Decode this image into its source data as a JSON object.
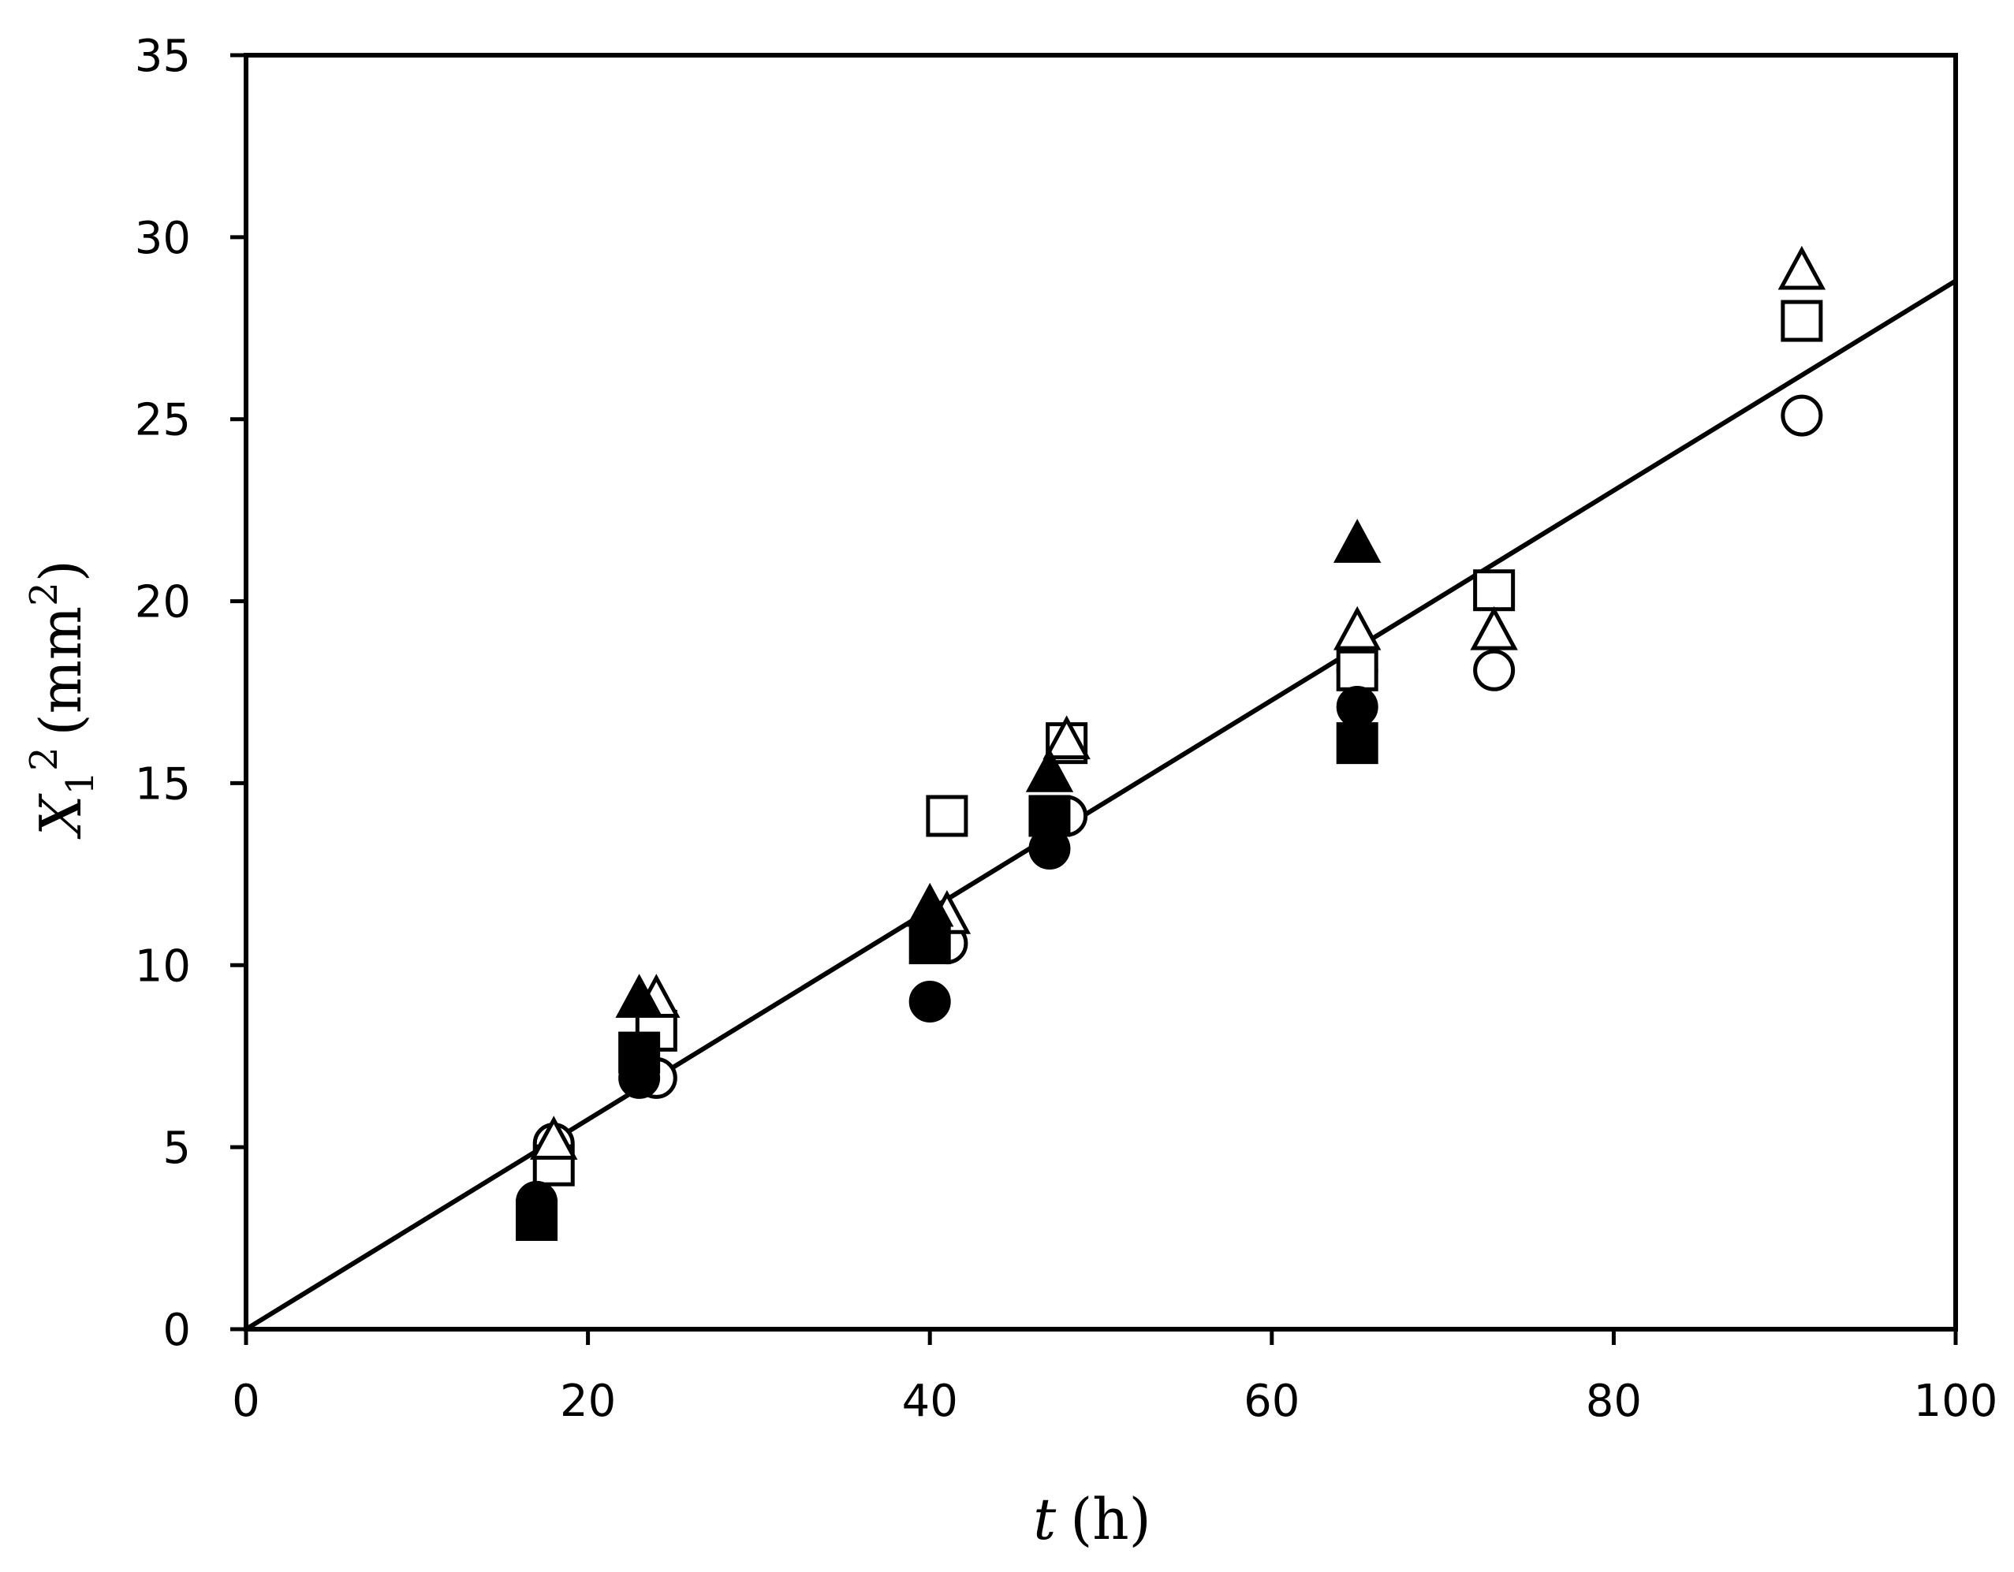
{
  "chart_data": {
    "type": "scatter",
    "title": "",
    "xlabel": {
      "var": "t",
      "unit": "(h)"
    },
    "ylabel": {
      "var": "X",
      "sub": "1",
      "sup": "2",
      "unit_pre": "(mm",
      "unit_sup": "2",
      "unit_post": ")"
    },
    "xlim": [
      0,
      100
    ],
    "ylim": [
      0,
      35
    ],
    "xticks": [
      0,
      20,
      40,
      60,
      80,
      100
    ],
    "yticks": [
      0,
      5,
      10,
      15,
      20,
      25,
      30,
      35
    ],
    "grid": false,
    "legend": "none",
    "fit_line": {
      "x": [
        0,
        100
      ],
      "y": [
        0,
        28.8
      ]
    },
    "series": [
      {
        "marker": "circle-open",
        "points": [
          [
            18,
            5.1
          ],
          [
            24,
            6.9
          ],
          [
            41,
            10.6
          ],
          [
            48,
            14.1
          ],
          [
            65,
            18.1
          ],
          [
            73,
            18.1
          ],
          [
            91,
            25.1
          ]
        ]
      },
      {
        "marker": "square-open",
        "points": [
          [
            18,
            4.5
          ],
          [
            24,
            8.2
          ],
          [
            41,
            14.1
          ],
          [
            48,
            16.1
          ],
          [
            65,
            18.1
          ],
          [
            73,
            20.3
          ],
          [
            91,
            27.7
          ]
        ]
      },
      {
        "marker": "triangle-open",
        "points": [
          [
            18,
            5.1
          ],
          [
            24,
            9.0
          ],
          [
            41,
            11.3
          ],
          [
            48,
            16.1
          ],
          [
            65,
            19.1
          ],
          [
            73,
            19.1
          ],
          [
            91,
            29.0
          ]
        ]
      },
      {
        "marker": "circle-filled",
        "points": [
          [
            17,
            3.5
          ],
          [
            23,
            6.9
          ],
          [
            40,
            9.0
          ],
          [
            47,
            13.2
          ],
          [
            65,
            17.1
          ]
        ]
      },
      {
        "marker": "square-filled",
        "points": [
          [
            17,
            3.0
          ],
          [
            23,
            7.6
          ],
          [
            40,
            10.6
          ],
          [
            47,
            14.1
          ],
          [
            65,
            16.1
          ]
        ]
      },
      {
        "marker": "triangle-filled",
        "points": [
          [
            23,
            9.0
          ],
          [
            40,
            11.5
          ],
          [
            47,
            15.2
          ],
          [
            65,
            21.5
          ]
        ]
      }
    ]
  }
}
